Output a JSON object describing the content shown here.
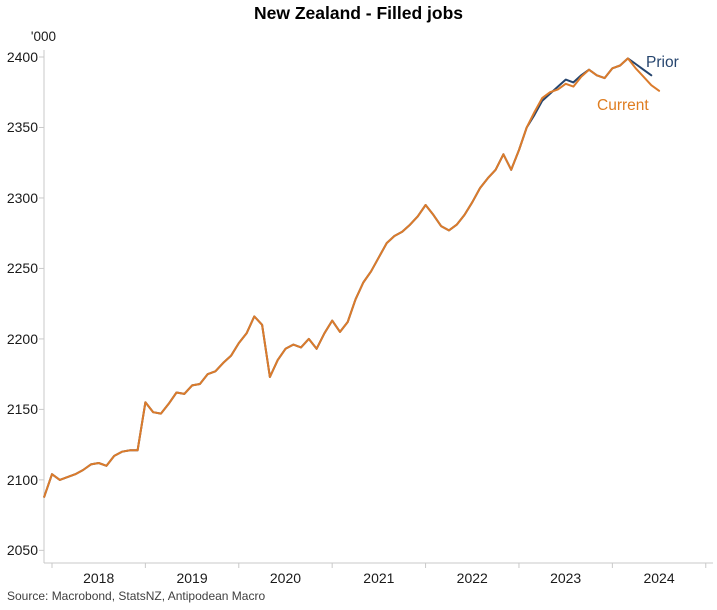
{
  "title": "New Zealand - Filled jobs",
  "y_axis": {
    "unit_label": "'000",
    "ticks": [
      2400,
      2350,
      2300,
      2250,
      2200,
      2150,
      2100,
      2050
    ]
  },
  "x_axis": {
    "year_labels": [
      "2018",
      "2019",
      "2020",
      "2021",
      "2022",
      "2023",
      "2024"
    ]
  },
  "series_labels": {
    "prior": "Prior",
    "current": "Current"
  },
  "source": "Source: Macrobond, StatsNZ, Antipodean Macro",
  "colors": {
    "current_line": "#DB7B2B",
    "current_label": "#DF7D20",
    "prior_line": "#26456E",
    "axis": "#c9c9c9",
    "tick_text": "#1a1a1a",
    "source_text": "#3f3f3f"
  },
  "chart_data": {
    "type": "line",
    "unit": "thousands of filled jobs",
    "ylim": [
      2041,
      2400
    ],
    "grid": false,
    "legend_position": "inline-end-of-line",
    "x": [
      "2017-12",
      "2018-01",
      "2018-02",
      "2018-03",
      "2018-04",
      "2018-05",
      "2018-06",
      "2018-07",
      "2018-08",
      "2018-09",
      "2018-10",
      "2018-11",
      "2018-12",
      "2019-01",
      "2019-02",
      "2019-03",
      "2019-04",
      "2019-05",
      "2019-06",
      "2019-07",
      "2019-08",
      "2019-09",
      "2019-10",
      "2019-11",
      "2019-12",
      "2020-01",
      "2020-02",
      "2020-03",
      "2020-04",
      "2020-05",
      "2020-06",
      "2020-07",
      "2020-08",
      "2020-09",
      "2020-10",
      "2020-11",
      "2020-12",
      "2021-01",
      "2021-02",
      "2021-03",
      "2021-04",
      "2021-05",
      "2021-06",
      "2021-07",
      "2021-08",
      "2021-09",
      "2021-10",
      "2021-11",
      "2021-12",
      "2022-01",
      "2022-02",
      "2022-03",
      "2022-04",
      "2022-05",
      "2022-06",
      "2022-07",
      "2022-08",
      "2022-09",
      "2022-10",
      "2022-11",
      "2022-12",
      "2023-01",
      "2023-02",
      "2023-03",
      "2023-04",
      "2023-05",
      "2023-06",
      "2023-07",
      "2023-08",
      "2023-09",
      "2023-10",
      "2023-11",
      "2023-12",
      "2024-01",
      "2024-02",
      "2024-03",
      "2024-04",
      "2024-05",
      "2024-06",
      "2024-07"
    ],
    "series": [
      {
        "name": "Prior",
        "color": "#26456E",
        "values": [
          2088,
          2104,
          2100,
          2102,
          2104,
          2107,
          2111,
          2112,
          2110,
          2117,
          2120,
          2121,
          2121,
          2155,
          2148,
          2147,
          2154,
          2162,
          2161,
          2167,
          2168,
          2175,
          2177,
          2183,
          2188,
          2197,
          2204,
          2216,
          2210,
          2173,
          2185,
          2193,
          2196,
          2194,
          2200,
          2193,
          2204,
          2213,
          2205,
          2212,
          2228,
          2240,
          2248,
          2258,
          2268,
          2273,
          2276,
          2281,
          2287,
          2295,
          2288,
          2280,
          2277,
          2281,
          2288,
          2297,
          2307,
          2314,
          2320,
          2331,
          2320,
          2334,
          2350,
          2359,
          2369,
          2374,
          2379,
          2384,
          2382,
          2387,
          2391,
          2387,
          2385,
          2392,
          2394,
          2399,
          2395,
          2391,
          2387
        ]
      },
      {
        "name": "Current",
        "color": "#DB7B2B",
        "values": [
          2088,
          2104,
          2100,
          2102,
          2104,
          2107,
          2111,
          2112,
          2110,
          2117,
          2120,
          2121,
          2121,
          2155,
          2148,
          2147,
          2154,
          2162,
          2161,
          2167,
          2168,
          2175,
          2177,
          2183,
          2188,
          2197,
          2204,
          2216,
          2210,
          2173,
          2185,
          2193,
          2196,
          2194,
          2200,
          2193,
          2204,
          2213,
          2205,
          2212,
          2228,
          2240,
          2248,
          2258,
          2268,
          2273,
          2276,
          2281,
          2287,
          2295,
          2288,
          2280,
          2277,
          2281,
          2288,
          2297,
          2307,
          2314,
          2320,
          2331,
          2320,
          2334,
          2350,
          2361,
          2371,
          2375,
          2377,
          2381,
          2379,
          2386,
          2391,
          2387,
          2385,
          2392,
          2394,
          2399,
          2392,
          2386,
          2380,
          2376
        ]
      }
    ]
  }
}
